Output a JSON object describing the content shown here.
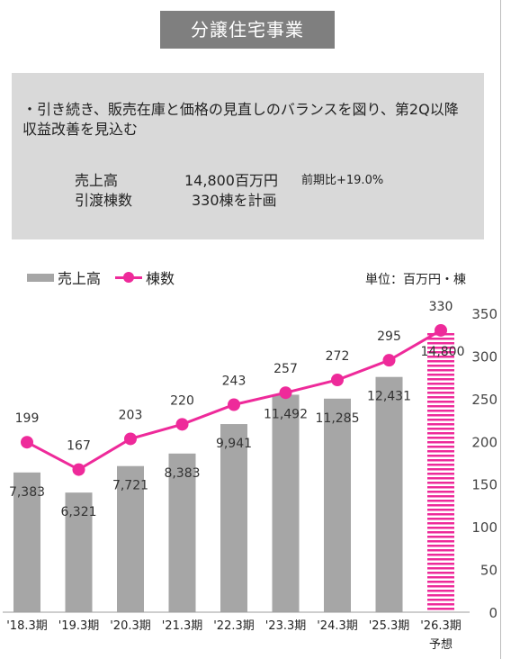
{
  "title": "分譲住宅事業",
  "summary": {
    "lead": "・引き続き、販売在庫と価格の見直しのバランスを図り、第2Q以降収益改善を見込む",
    "sales_label": "売上高",
    "sales_value": "14,800百万円",
    "sales_note": "前期比+19.0%",
    "units_label": "引渡棟数",
    "units_value": "330棟を計画"
  },
  "unit": "単位：百万円・棟",
  "chart_data": {
    "type": "bar",
    "categories": [
      "'18.3期",
      "'19.3期",
      "'20.3期",
      "'21.3期",
      "'22.3期",
      "'23.3期",
      "'24.3期",
      "'25.3期",
      "'26.3期"
    ],
    "category_notes": [
      "",
      "",
      "",
      "",
      "",
      "",
      "",
      "",
      "予想"
    ],
    "series": [
      {
        "name": "売上高",
        "type": "bar",
        "values": [
          7383,
          6321,
          7721,
          8383,
          9941,
          11492,
          11285,
          12431,
          14800
        ],
        "labels": [
          "7,383",
          "6,321",
          "7,721",
          "8,383",
          "9,941",
          "11,492",
          "11,285",
          "12,431",
          "14,800"
        ],
        "color": "#a6a6a6",
        "forecast_color": "#ee2a9a"
      },
      {
        "name": "棟数",
        "type": "line",
        "values": [
          199,
          167,
          203,
          220,
          243,
          257,
          272,
          295,
          330
        ],
        "color": "#ee2a9a",
        "axis": "right"
      }
    ],
    "right_axis": {
      "range": [
        0,
        350
      ],
      "ticks": [
        "0",
        "50",
        "100",
        "150",
        "200",
        "250",
        "300",
        "350"
      ]
    },
    "bar_axis_range": [
      0,
      16000
    ],
    "legend_position": "top-left",
    "grid": false
  }
}
